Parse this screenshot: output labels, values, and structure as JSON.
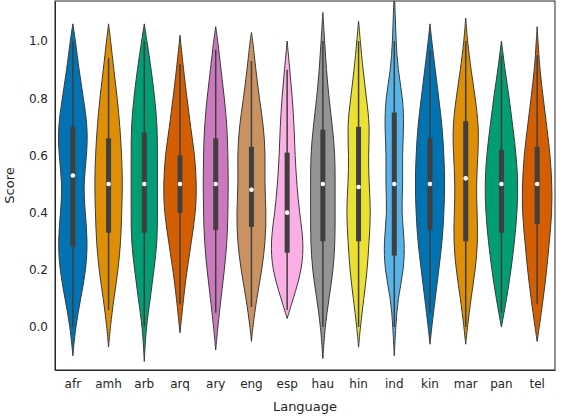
{
  "chart_data": {
    "type": "violin",
    "x_label": "Language",
    "y_label": "Score",
    "categories": [
      "afr",
      "amh",
      "arb",
      "arq",
      "ary",
      "eng",
      "esp",
      "hau",
      "hin",
      "ind",
      "kin",
      "mar",
      "pan",
      "tel"
    ],
    "colors": [
      "#0173b2",
      "#de8f05",
      "#029e73",
      "#d55e00",
      "#cc78bc",
      "#ca9161",
      "#fbafe4",
      "#949494",
      "#ece133",
      "#56b4e9",
      "#0173b2",
      "#de8f05",
      "#029e73",
      "#d55e00"
    ],
    "ylim": [
      -0.15,
      1.14
    ],
    "yticks": [
      {
        "value": 0,
        "label": "0.0"
      },
      0.2,
      0.4,
      0.6,
      0.8,
      {
        "value": 1,
        "label": "1.0"
      }
    ],
    "grid": false,
    "violins": [
      {
        "y": [
          -0.1,
          0,
          0.1,
          0.2,
          0.3,
          0.4,
          0.5,
          0.6,
          0.7,
          0.8,
          0.9,
          1.0,
          1.06
        ],
        "density": [
          0,
          0.15,
          0.45,
          0.75,
          0.85,
          0.7,
          0.6,
          0.8,
          0.85,
          0.6,
          0.35,
          0.15,
          0
        ],
        "whisker": [
          0.0,
          1.0
        ],
        "quartiles": [
          0.28,
          0.7
        ],
        "median": 0.53
      },
      {
        "y": [
          -0.07,
          0,
          0.1,
          0.2,
          0.3,
          0.4,
          0.5,
          0.6,
          0.7,
          0.8,
          0.9,
          1.0,
          1.06
        ],
        "density": [
          0,
          0.1,
          0.3,
          0.55,
          0.7,
          0.75,
          0.8,
          0.75,
          0.65,
          0.5,
          0.3,
          0.12,
          0
        ],
        "whisker": [
          0.06,
          0.94
        ],
        "quartiles": [
          0.33,
          0.66
        ],
        "median": 0.5
      },
      {
        "y": [
          -0.12,
          0,
          0.1,
          0.2,
          0.3,
          0.4,
          0.5,
          0.6,
          0.7,
          0.8,
          0.9,
          1.0,
          1.06
        ],
        "density": [
          0,
          0.1,
          0.35,
          0.55,
          0.75,
          0.75,
          0.75,
          0.75,
          0.75,
          0.6,
          0.4,
          0.15,
          0
        ],
        "whisker": [
          0.0,
          1.0
        ],
        "quartiles": [
          0.33,
          0.68
        ],
        "median": 0.5
      },
      {
        "y": [
          -0.02,
          0.1,
          0.2,
          0.3,
          0.4,
          0.5,
          0.6,
          0.7,
          0.8,
          0.9,
          1.02
        ],
        "density": [
          0,
          0.2,
          0.4,
          0.65,
          0.9,
          0.95,
          0.85,
          0.6,
          0.4,
          0.2,
          0
        ],
        "whisker": [
          0.08,
          0.92
        ],
        "quartiles": [
          0.4,
          0.6
        ],
        "median": 0.5
      },
      {
        "y": [
          -0.08,
          0,
          0.1,
          0.2,
          0.3,
          0.4,
          0.5,
          0.6,
          0.7,
          0.8,
          0.9,
          1.0,
          1.05
        ],
        "density": [
          0,
          0.12,
          0.3,
          0.5,
          0.65,
          0.7,
          0.72,
          0.7,
          0.65,
          0.5,
          0.3,
          0.12,
          0
        ],
        "whisker": [
          0.05,
          0.97
        ],
        "quartiles": [
          0.34,
          0.66
        ],
        "median": 0.5
      },
      {
        "y": [
          -0.05,
          0,
          0.1,
          0.2,
          0.3,
          0.4,
          0.5,
          0.6,
          0.7,
          0.8,
          0.9,
          1.0,
          1.03
        ],
        "density": [
          0,
          0.08,
          0.3,
          0.6,
          0.8,
          0.85,
          0.75,
          0.8,
          0.7,
          0.45,
          0.25,
          0.08,
          0
        ],
        "whisker": [
          0.07,
          0.93
        ],
        "quartiles": [
          0.35,
          0.63
        ],
        "median": 0.48
      },
      {
        "y": [
          0.03,
          0.1,
          0.2,
          0.3,
          0.4,
          0.5,
          0.6,
          0.7,
          0.8,
          0.9,
          1.0
        ],
        "density": [
          0,
          0.35,
          0.85,
          0.95,
          0.7,
          0.55,
          0.45,
          0.4,
          0.3,
          0.15,
          0
        ],
        "whisker": [
          0.06,
          0.9
        ],
        "quartiles": [
          0.26,
          0.61
        ],
        "median": 0.4
      },
      {
        "y": [
          -0.11,
          0,
          0.1,
          0.2,
          0.3,
          0.4,
          0.5,
          0.6,
          0.7,
          0.8,
          0.9,
          1.0,
          1.1
        ],
        "density": [
          0,
          0.12,
          0.35,
          0.6,
          0.7,
          0.7,
          0.7,
          0.7,
          0.55,
          0.35,
          0.2,
          0.1,
          0
        ],
        "whisker": [
          0.0,
          1.0
        ],
        "quartiles": [
          0.3,
          0.69
        ],
        "median": 0.5
      },
      {
        "y": [
          -0.07,
          0,
          0.1,
          0.2,
          0.3,
          0.4,
          0.5,
          0.6,
          0.7,
          0.8,
          0.9,
          1.0,
          1.07
        ],
        "density": [
          0,
          0.1,
          0.3,
          0.5,
          0.6,
          0.7,
          0.6,
          0.55,
          0.65,
          0.45,
          0.25,
          0.1,
          0
        ],
        "whisker": [
          0.0,
          1.0
        ],
        "quartiles": [
          0.3,
          0.7
        ],
        "median": 0.49
      },
      {
        "y": [
          -0.1,
          0,
          0.1,
          0.2,
          0.3,
          0.4,
          0.5,
          0.6,
          0.7,
          0.8,
          0.9,
          1.0,
          1.1,
          1.18
        ],
        "density": [
          0,
          0.08,
          0.2,
          0.55,
          0.6,
          0.4,
          0.5,
          0.45,
          0.55,
          0.5,
          0.2,
          0.1,
          0.05,
          0
        ],
        "whisker": [
          0.0,
          1.0
        ],
        "quartiles": [
          0.25,
          0.75
        ],
        "median": 0.5
      },
      {
        "y": [
          -0.06,
          0,
          0.1,
          0.2,
          0.3,
          0.4,
          0.5,
          0.6,
          0.7,
          0.8,
          0.9,
          1.0,
          1.06
        ],
        "density": [
          0,
          0.1,
          0.3,
          0.5,
          0.7,
          0.8,
          0.85,
          0.8,
          0.7,
          0.5,
          0.3,
          0.1,
          0
        ],
        "whisker": [
          0.05,
          0.97
        ],
        "quartiles": [
          0.34,
          0.66
        ],
        "median": 0.5
      },
      {
        "y": [
          -0.06,
          0,
          0.1,
          0.2,
          0.3,
          0.4,
          0.5,
          0.6,
          0.7,
          0.8,
          0.9,
          1.0,
          1.08
        ],
        "density": [
          0,
          0.1,
          0.3,
          0.55,
          0.7,
          0.65,
          0.6,
          0.7,
          0.75,
          0.55,
          0.3,
          0.1,
          0
        ],
        "whisker": [
          0.0,
          1.0
        ],
        "quartiles": [
          0.3,
          0.72
        ],
        "median": 0.52
      },
      {
        "y": [
          0.0,
          0.1,
          0.2,
          0.3,
          0.4,
          0.5,
          0.6,
          0.7,
          0.8,
          0.9,
          1.0
        ],
        "density": [
          0,
          0.3,
          0.55,
          0.75,
          0.9,
          0.95,
          0.85,
          0.65,
          0.45,
          0.2,
          0
        ],
        "whisker": [
          0.05,
          0.95
        ],
        "quartiles": [
          0.33,
          0.62
        ],
        "median": 0.5
      },
      {
        "y": [
          -0.05,
          0,
          0.1,
          0.2,
          0.3,
          0.4,
          0.5,
          0.6,
          0.7,
          0.8,
          0.9,
          1.0,
          1.05
        ],
        "density": [
          0,
          0.12,
          0.35,
          0.55,
          0.7,
          0.85,
          0.85,
          0.75,
          0.55,
          0.35,
          0.15,
          0.05,
          0
        ],
        "whisker": [
          0.08,
          0.95
        ],
        "quartiles": [
          0.36,
          0.63
        ],
        "median": 0.5
      }
    ]
  }
}
